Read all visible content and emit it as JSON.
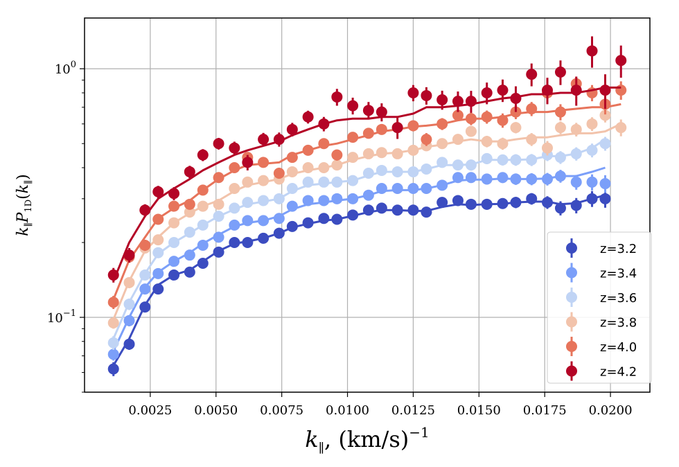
{
  "chart_data": {
    "type": "scatter",
    "title": "",
    "xlabel": "k∥, (km/s)⁻¹",
    "ylabel": "k∥ P1D(k∥)",
    "xlim": [
      0.0,
      0.0215
    ],
    "ylim": [
      0.05,
      1.6
    ],
    "yscale": "log",
    "grid": true,
    "legend_position": "lower-right",
    "x_ticks": [
      0.0025,
      0.005,
      0.0075,
      0.01,
      0.0125,
      0.015,
      0.0175,
      0.02
    ],
    "x_tick_labels": [
      "0.0025",
      "0.0050",
      "0.0075",
      "0.0100",
      "0.0125",
      "0.0150",
      "0.0175",
      "0.0200"
    ],
    "y_ticks": [
      0.1,
      1.0
    ],
    "y_tick_labels": [
      {
        "base": "10",
        "exp": "−1"
      },
      {
        "base": "10",
        "exp": "0"
      }
    ],
    "series": [
      {
        "name": "z=3.2",
        "color": "#3b4cc0",
        "x": [
          0.0011,
          0.0017,
          0.0023,
          0.0028,
          0.0034,
          0.004,
          0.0045,
          0.0051,
          0.0057,
          0.0062,
          0.0068,
          0.0074,
          0.0079,
          0.0085,
          0.0091,
          0.0096,
          0.0102,
          0.0108,
          0.0113,
          0.0119,
          0.0125,
          0.013,
          0.0136,
          0.0142,
          0.0147,
          0.0153,
          0.0159,
          0.0164,
          0.017,
          0.0176,
          0.0181,
          0.0187,
          0.0193,
          0.0198
        ],
        "y": [
          0.062,
          0.078,
          0.11,
          0.13,
          0.148,
          0.152,
          0.165,
          0.183,
          0.2,
          0.2,
          0.208,
          0.218,
          0.232,
          0.24,
          0.25,
          0.248,
          0.258,
          0.27,
          0.275,
          0.27,
          0.27,
          0.265,
          0.29,
          0.295,
          0.285,
          0.285,
          0.287,
          0.29,
          0.3,
          0.29,
          0.275,
          0.282,
          0.3,
          0.3
        ],
        "err": [
          0.004,
          0.004,
          0.005,
          0.005,
          0.006,
          0.006,
          0.006,
          0.007,
          0.007,
          0.007,
          0.007,
          0.008,
          0.008,
          0.008,
          0.009,
          0.009,
          0.01,
          0.01,
          0.01,
          0.011,
          0.011,
          0.012,
          0.013,
          0.013,
          0.013,
          0.014,
          0.014,
          0.015,
          0.016,
          0.017,
          0.018,
          0.02,
          0.022,
          0.024
        ],
        "curve_x": [
          0.0011,
          0.0017,
          0.0023,
          0.0028,
          0.0034,
          0.004,
          0.0045,
          0.0051,
          0.0057,
          0.0062,
          0.0068,
          0.0074,
          0.0079,
          0.0085,
          0.0091,
          0.0096,
          0.0102,
          0.0108,
          0.0113,
          0.0119,
          0.0125,
          0.013,
          0.0136,
          0.0142,
          0.0147,
          0.0153,
          0.0159,
          0.0164,
          0.017,
          0.0176,
          0.0181,
          0.0187,
          0.0193,
          0.0198
        ],
        "curve_y": [
          0.064,
          0.082,
          0.112,
          0.135,
          0.148,
          0.155,
          0.168,
          0.185,
          0.198,
          0.202,
          0.208,
          0.218,
          0.23,
          0.238,
          0.245,
          0.248,
          0.256,
          0.265,
          0.27,
          0.27,
          0.268,
          0.268,
          0.278,
          0.285,
          0.283,
          0.285,
          0.286,
          0.29,
          0.292,
          0.292,
          0.285,
          0.288,
          0.3,
          0.31
        ]
      },
      {
        "name": "z=3.4",
        "color": "#7b9ff9",
        "x": [
          0.0011,
          0.0017,
          0.0023,
          0.0028,
          0.0034,
          0.004,
          0.0045,
          0.0051,
          0.0057,
          0.0062,
          0.0068,
          0.0074,
          0.0079,
          0.0085,
          0.0091,
          0.0096,
          0.0102,
          0.0108,
          0.0113,
          0.0119,
          0.0125,
          0.013,
          0.0136,
          0.0142,
          0.0147,
          0.0153,
          0.0159,
          0.0164,
          0.017,
          0.0176,
          0.0181,
          0.0187,
          0.0193,
          0.0198
        ],
        "y": [
          0.071,
          0.097,
          0.13,
          0.15,
          0.168,
          0.178,
          0.195,
          0.21,
          0.235,
          0.245,
          0.245,
          0.25,
          0.28,
          0.295,
          0.295,
          0.3,
          0.3,
          0.31,
          0.33,
          0.33,
          0.33,
          0.33,
          0.34,
          0.365,
          0.365,
          0.36,
          0.365,
          0.36,
          0.36,
          0.36,
          0.37,
          0.35,
          0.35,
          0.345
        ],
        "err": [
          0.004,
          0.005,
          0.006,
          0.006,
          0.007,
          0.007,
          0.008,
          0.008,
          0.009,
          0.009,
          0.009,
          0.01,
          0.01,
          0.011,
          0.011,
          0.012,
          0.012,
          0.013,
          0.013,
          0.014,
          0.014,
          0.015,
          0.016,
          0.016,
          0.017,
          0.018,
          0.018,
          0.019,
          0.02,
          0.021,
          0.022,
          0.024,
          0.026,
          0.028
        ],
        "curve_x": [
          0.0011,
          0.0017,
          0.0023,
          0.0028,
          0.0034,
          0.004,
          0.0045,
          0.0051,
          0.0057,
          0.0062,
          0.0068,
          0.0074,
          0.0079,
          0.0085,
          0.0091,
          0.0096,
          0.0102,
          0.0108,
          0.0113,
          0.0119,
          0.0125,
          0.013,
          0.0136,
          0.0142,
          0.0147,
          0.0153,
          0.0159,
          0.0164,
          0.017,
          0.0176,
          0.0181,
          0.0187,
          0.0193,
          0.0198
        ],
        "curve_y": [
          0.073,
          0.1,
          0.132,
          0.152,
          0.168,
          0.182,
          0.198,
          0.215,
          0.232,
          0.24,
          0.245,
          0.255,
          0.272,
          0.285,
          0.29,
          0.295,
          0.3,
          0.31,
          0.322,
          0.325,
          0.325,
          0.33,
          0.34,
          0.355,
          0.358,
          0.358,
          0.362,
          0.36,
          0.36,
          0.362,
          0.37,
          0.37,
          0.385,
          0.4
        ]
      },
      {
        "name": "z=3.6",
        "color": "#c0d4f5",
        "x": [
          0.0011,
          0.0017,
          0.0023,
          0.0028,
          0.0034,
          0.004,
          0.0045,
          0.0051,
          0.0057,
          0.0062,
          0.0068,
          0.0074,
          0.0079,
          0.0085,
          0.0091,
          0.0096,
          0.0102,
          0.0108,
          0.0113,
          0.0119,
          0.0125,
          0.013,
          0.0136,
          0.0142,
          0.0147,
          0.0153,
          0.0159,
          0.0164,
          0.017,
          0.0176,
          0.0181,
          0.0187,
          0.0193,
          0.0198
        ],
        "y": [
          0.079,
          0.113,
          0.148,
          0.182,
          0.2,
          0.22,
          0.235,
          0.255,
          0.275,
          0.29,
          0.295,
          0.3,
          0.33,
          0.35,
          0.35,
          0.35,
          0.355,
          0.38,
          0.39,
          0.385,
          0.385,
          0.395,
          0.42,
          0.41,
          0.41,
          0.435,
          0.43,
          0.43,
          0.43,
          0.45,
          0.44,
          0.455,
          0.47,
          0.5
        ],
        "err": [
          0.005,
          0.006,
          0.007,
          0.008,
          0.008,
          0.009,
          0.009,
          0.01,
          0.011,
          0.011,
          0.012,
          0.012,
          0.013,
          0.013,
          0.014,
          0.014,
          0.015,
          0.015,
          0.016,
          0.017,
          0.017,
          0.018,
          0.019,
          0.02,
          0.021,
          0.022,
          0.022,
          0.023,
          0.024,
          0.025,
          0.026,
          0.028,
          0.03,
          0.032
        ],
        "curve_x": [
          0.0011,
          0.0017,
          0.0023,
          0.0028,
          0.0034,
          0.004,
          0.0045,
          0.0051,
          0.0057,
          0.0062,
          0.0068,
          0.0074,
          0.0079,
          0.0085,
          0.0091,
          0.0096,
          0.0102,
          0.0108,
          0.0113,
          0.0119,
          0.0125,
          0.013,
          0.0136,
          0.0142,
          0.0147,
          0.0153,
          0.0159,
          0.0164,
          0.017,
          0.0176,
          0.0181,
          0.0187,
          0.0193,
          0.0198
        ],
        "curve_y": [
          0.082,
          0.115,
          0.15,
          0.18,
          0.2,
          0.218,
          0.235,
          0.255,
          0.272,
          0.285,
          0.292,
          0.3,
          0.322,
          0.34,
          0.345,
          0.35,
          0.355,
          0.372,
          0.385,
          0.385,
          0.385,
          0.395,
          0.41,
          0.41,
          0.412,
          0.43,
          0.43,
          0.43,
          0.432,
          0.445,
          0.445,
          0.455,
          0.48,
          0.52
        ]
      },
      {
        "name": "z=3.8",
        "color": "#f2c3ab",
        "x": [
          0.0011,
          0.0017,
          0.0023,
          0.0028,
          0.0034,
          0.004,
          0.0045,
          0.0051,
          0.0057,
          0.0062,
          0.0068,
          0.0074,
          0.0079,
          0.0085,
          0.0091,
          0.0096,
          0.0102,
          0.0108,
          0.0113,
          0.0119,
          0.0125,
          0.013,
          0.0136,
          0.0142,
          0.0147,
          0.0153,
          0.0159,
          0.0164,
          0.017,
          0.0176,
          0.0181,
          0.0187,
          0.0193,
          0.0198,
          0.0204
        ],
        "y": [
          0.095,
          0.138,
          0.19,
          0.205,
          0.24,
          0.265,
          0.28,
          0.285,
          0.33,
          0.35,
          0.355,
          0.36,
          0.385,
          0.4,
          0.4,
          0.41,
          0.44,
          0.455,
          0.46,
          0.455,
          0.47,
          0.49,
          0.5,
          0.52,
          0.56,
          0.51,
          0.5,
          0.58,
          0.52,
          0.48,
          0.58,
          0.57,
          0.6,
          0.65,
          0.58
        ],
        "err": [
          0.005,
          0.007,
          0.008,
          0.009,
          0.01,
          0.01,
          0.011,
          0.012,
          0.013,
          0.013,
          0.014,
          0.015,
          0.015,
          0.016,
          0.017,
          0.017,
          0.018,
          0.019,
          0.02,
          0.021,
          0.022,
          0.023,
          0.024,
          0.025,
          0.026,
          0.027,
          0.028,
          0.03,
          0.031,
          0.032,
          0.034,
          0.036,
          0.038,
          0.042,
          0.045
        ],
        "curve_x": [
          0.0011,
          0.0017,
          0.0023,
          0.0028,
          0.0034,
          0.004,
          0.0045,
          0.0051,
          0.0057,
          0.0062,
          0.0068,
          0.0074,
          0.0079,
          0.0085,
          0.0091,
          0.0096,
          0.0102,
          0.0108,
          0.0113,
          0.0119,
          0.0125,
          0.013,
          0.0136,
          0.0142,
          0.0147,
          0.0153,
          0.0159,
          0.0164,
          0.017,
          0.0176,
          0.0181,
          0.0187,
          0.0193,
          0.0198,
          0.0204
        ],
        "curve_y": [
          0.098,
          0.14,
          0.185,
          0.21,
          0.24,
          0.262,
          0.28,
          0.295,
          0.322,
          0.34,
          0.35,
          0.36,
          0.378,
          0.39,
          0.4,
          0.41,
          0.43,
          0.445,
          0.455,
          0.46,
          0.47,
          0.485,
          0.495,
          0.51,
          0.52,
          0.51,
          0.51,
          0.52,
          0.53,
          0.53,
          0.54,
          0.55,
          0.55,
          0.56,
          0.6
        ]
      },
      {
        "name": "z=4.0",
        "color": "#e7745b",
        "x": [
          0.0011,
          0.0017,
          0.0023,
          0.0028,
          0.0034,
          0.004,
          0.0045,
          0.0051,
          0.0057,
          0.0062,
          0.0068,
          0.0074,
          0.0079,
          0.0085,
          0.0091,
          0.0096,
          0.0102,
          0.0108,
          0.0113,
          0.0119,
          0.0125,
          0.013,
          0.0136,
          0.0142,
          0.0147,
          0.0153,
          0.0159,
          0.0164,
          0.017,
          0.0176,
          0.0181,
          0.0187,
          0.0193,
          0.0198,
          0.0204
        ],
        "y": [
          0.115,
          0.175,
          0.195,
          0.248,
          0.28,
          0.285,
          0.325,
          0.365,
          0.4,
          0.44,
          0.42,
          0.38,
          0.44,
          0.47,
          0.5,
          0.45,
          0.53,
          0.55,
          0.57,
          0.58,
          0.59,
          0.52,
          0.6,
          0.65,
          0.63,
          0.64,
          0.62,
          0.67,
          0.69,
          0.8,
          0.67,
          0.87,
          0.8,
          0.72,
          0.82
        ],
        "err": [
          0.007,
          0.009,
          0.01,
          0.011,
          0.012,
          0.013,
          0.014,
          0.015,
          0.016,
          0.017,
          0.018,
          0.019,
          0.02,
          0.021,
          0.022,
          0.023,
          0.024,
          0.026,
          0.027,
          0.028,
          0.03,
          0.031,
          0.033,
          0.035,
          0.037,
          0.039,
          0.041,
          0.043,
          0.045,
          0.048,
          0.05,
          0.055,
          0.06,
          0.065,
          0.07
        ],
        "curve_x": [
          0.0011,
          0.0017,
          0.0023,
          0.0028,
          0.0034,
          0.004,
          0.0045,
          0.0051,
          0.0057,
          0.0062,
          0.0068,
          0.0074,
          0.0079,
          0.0085,
          0.0091,
          0.0096,
          0.0102,
          0.0108,
          0.0113,
          0.0119,
          0.0125,
          0.013,
          0.0136,
          0.0142,
          0.0147,
          0.0153,
          0.0159,
          0.0164,
          0.017,
          0.0176,
          0.0181,
          0.0187,
          0.0193,
          0.0198,
          0.0204
        ],
        "curve_y": [
          0.118,
          0.17,
          0.21,
          0.25,
          0.275,
          0.295,
          0.325,
          0.36,
          0.39,
          0.41,
          0.415,
          0.42,
          0.45,
          0.47,
          0.49,
          0.5,
          0.52,
          0.54,
          0.56,
          0.57,
          0.585,
          0.59,
          0.6,
          0.62,
          0.63,
          0.63,
          0.64,
          0.66,
          0.67,
          0.67,
          0.68,
          0.69,
          0.7,
          0.7,
          0.72
        ]
      },
      {
        "name": "z=4.2",
        "color": "#b40426",
        "x": [
          0.0011,
          0.0017,
          0.0023,
          0.0028,
          0.0034,
          0.004,
          0.0045,
          0.0051,
          0.0057,
          0.0062,
          0.0068,
          0.0074,
          0.0079,
          0.0085,
          0.0091,
          0.0096,
          0.0102,
          0.0108,
          0.0113,
          0.0119,
          0.0125,
          0.013,
          0.0136,
          0.0142,
          0.0147,
          0.0153,
          0.0159,
          0.0164,
          0.017,
          0.0176,
          0.0181,
          0.0187,
          0.0193,
          0.0198,
          0.0204
        ],
        "y": [
          0.148,
          0.178,
          0.27,
          0.32,
          0.315,
          0.385,
          0.45,
          0.5,
          0.48,
          0.42,
          0.52,
          0.52,
          0.57,
          0.64,
          0.6,
          0.77,
          0.71,
          0.68,
          0.67,
          0.58,
          0.8,
          0.78,
          0.75,
          0.74,
          0.74,
          0.8,
          0.82,
          0.76,
          0.95,
          0.82,
          0.97,
          0.82,
          1.18,
          0.82,
          1.08
        ],
        "err": [
          0.01,
          0.012,
          0.015,
          0.018,
          0.019,
          0.022,
          0.025,
          0.027,
          0.029,
          0.03,
          0.032,
          0.034,
          0.036,
          0.038,
          0.04,
          0.06,
          0.055,
          0.055,
          0.056,
          0.058,
          0.06,
          0.063,
          0.066,
          0.07,
          0.075,
          0.08,
          0.085,
          0.09,
          0.1,
          0.1,
          0.11,
          0.11,
          0.17,
          0.13,
          0.16
        ],
        "curve_x": [
          0.0011,
          0.0017,
          0.0023,
          0.0028,
          0.0034,
          0.004,
          0.0045,
          0.0051,
          0.0057,
          0.0062,
          0.0068,
          0.0074,
          0.0079,
          0.0085,
          0.0091,
          0.0096,
          0.0102,
          0.0108,
          0.0113,
          0.0119,
          0.0125,
          0.013,
          0.0136,
          0.0142,
          0.0147,
          0.0153,
          0.0159,
          0.0164,
          0.017,
          0.0176,
          0.0181,
          0.0187,
          0.0193,
          0.0198,
          0.0204
        ],
        "curve_y": [
          0.14,
          0.2,
          0.255,
          0.3,
          0.33,
          0.36,
          0.39,
          0.42,
          0.45,
          0.47,
          0.49,
          0.51,
          0.54,
          0.57,
          0.6,
          0.62,
          0.63,
          0.63,
          0.64,
          0.64,
          0.66,
          0.7,
          0.7,
          0.71,
          0.72,
          0.74,
          0.76,
          0.77,
          0.79,
          0.79,
          0.8,
          0.8,
          0.82,
          0.84,
          0.84
        ]
      }
    ]
  }
}
